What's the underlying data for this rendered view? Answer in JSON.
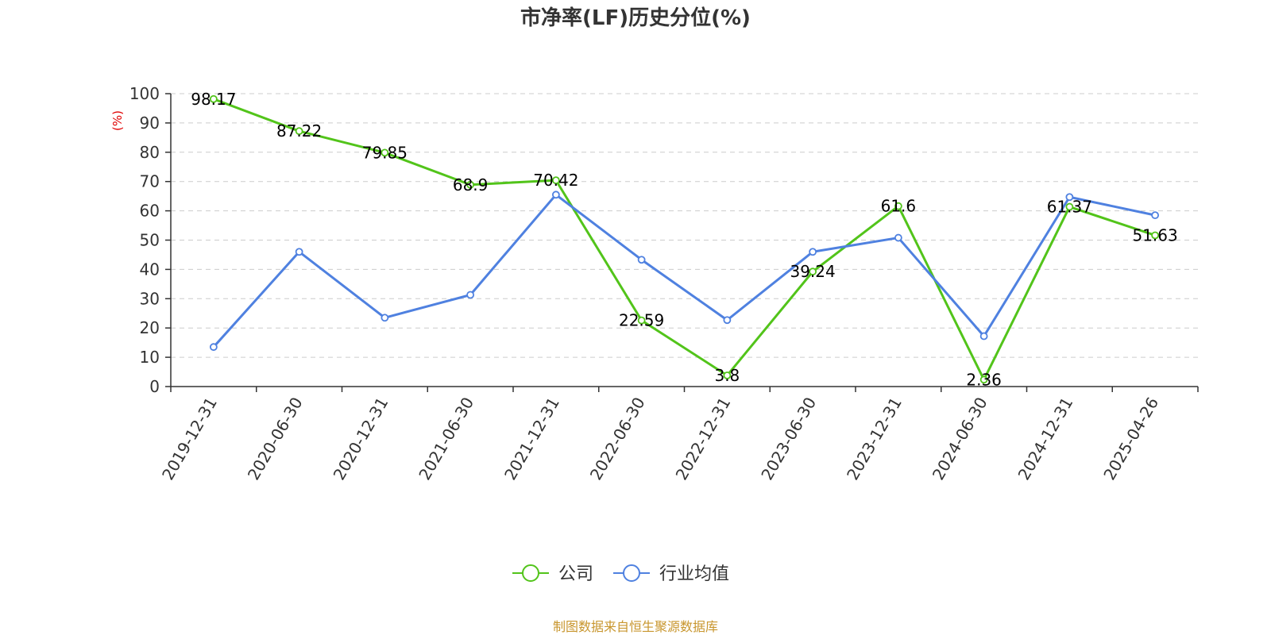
{
  "chart_data": {
    "type": "line",
    "title": "市净率(LF)历史分位(%)",
    "ylabel": "(%)",
    "xlabel": "",
    "ylim": [
      0,
      100
    ],
    "yticks": [
      0,
      10,
      20,
      30,
      40,
      50,
      60,
      70,
      80,
      90,
      100
    ],
    "grid": true,
    "legend_position": "bottom",
    "categories": [
      "2019-12-31",
      "2020-06-30",
      "2020-12-31",
      "2021-06-30",
      "2021-12-31",
      "2022-06-30",
      "2022-12-31",
      "2023-06-30",
      "2023-12-31",
      "2024-06-30",
      "2024-12-31",
      "2025-04-26"
    ],
    "series": [
      {
        "name": "公司",
        "color": "#52c41a",
        "values": [
          98.17,
          87.22,
          79.85,
          68.9,
          70.42,
          22.59,
          3.8,
          39.24,
          61.6,
          2.36,
          61.37,
          51.63
        ],
        "labels": [
          "98.17",
          "87.22",
          "79.85",
          "68.9",
          "70.42",
          "22.59",
          "3.8",
          "39.24",
          "61.6",
          "2.36",
          "61.37",
          "51.63"
        ]
      },
      {
        "name": "行业均值",
        "color": "#4f81e0",
        "values": [
          13.5,
          46.0,
          23.5,
          31.3,
          65.5,
          43.3,
          22.7,
          46.0,
          50.8,
          17.2,
          64.7,
          58.5
        ]
      }
    ]
  },
  "source": "制图数据来自恒生聚源数据库",
  "colors": {
    "source_text": "#c8962e",
    "unit_label": "#e00000",
    "axis": "#333333"
  }
}
